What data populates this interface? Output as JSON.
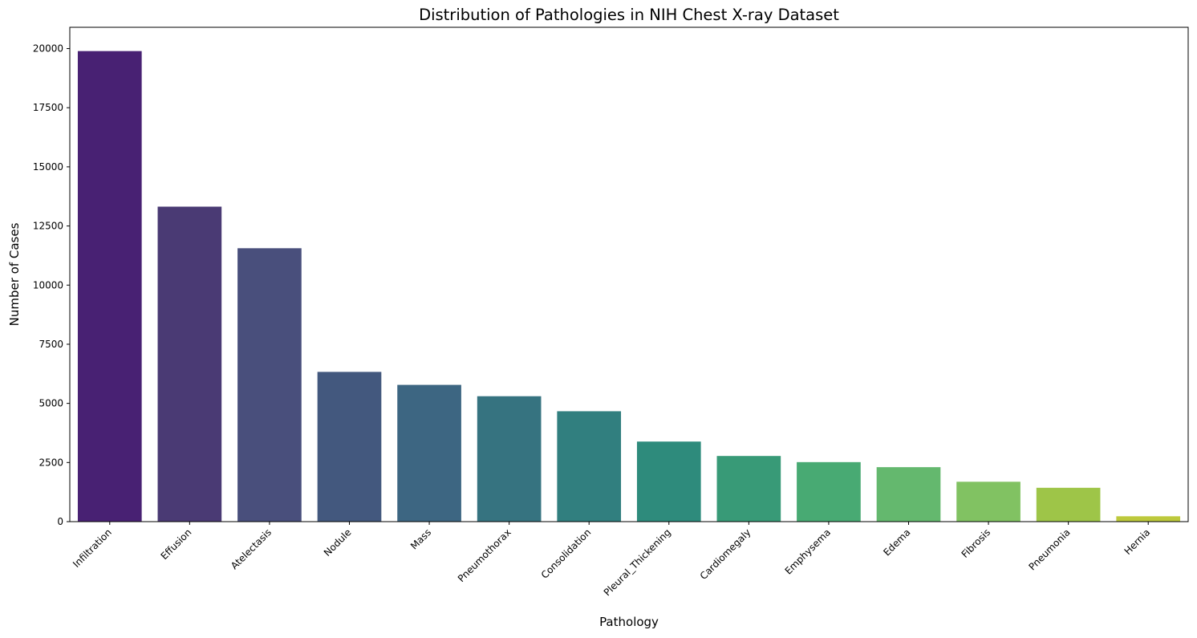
{
  "chart_data": {
    "type": "bar",
    "title": "Distribution of Pathologies in NIH Chest X-ray Dataset",
    "xlabel": "Pathology",
    "ylabel": "Number of Cases",
    "ylim": [
      0,
      20900
    ],
    "yticks": [
      0,
      2500,
      5000,
      7500,
      10000,
      12500,
      15000,
      17500,
      20000
    ],
    "grid": false,
    "palette": "viridis",
    "categories": [
      "Infiltration",
      "Effusion",
      "Atelectasis",
      "Nodule",
      "Mass",
      "Pneumothorax",
      "Consolidation",
      "Pleural_Thickening",
      "Cardiomegaly",
      "Emphysema",
      "Edema",
      "Fibrosis",
      "Pneumonia",
      "Hernia"
    ],
    "values": [
      19894,
      13317,
      11559,
      6331,
      5782,
      5302,
      4667,
      3385,
      2776,
      2516,
      2303,
      1686,
      1431,
      227
    ],
    "colors": [
      "#482173",
      "#4a3a74",
      "#494f7c",
      "#43587e",
      "#3d6682",
      "#367380",
      "#317f7f",
      "#2e8b7c",
      "#389a77",
      "#48aa73",
      "#64b86e",
      "#81c262",
      "#9ec548",
      "#bdc93c"
    ]
  }
}
